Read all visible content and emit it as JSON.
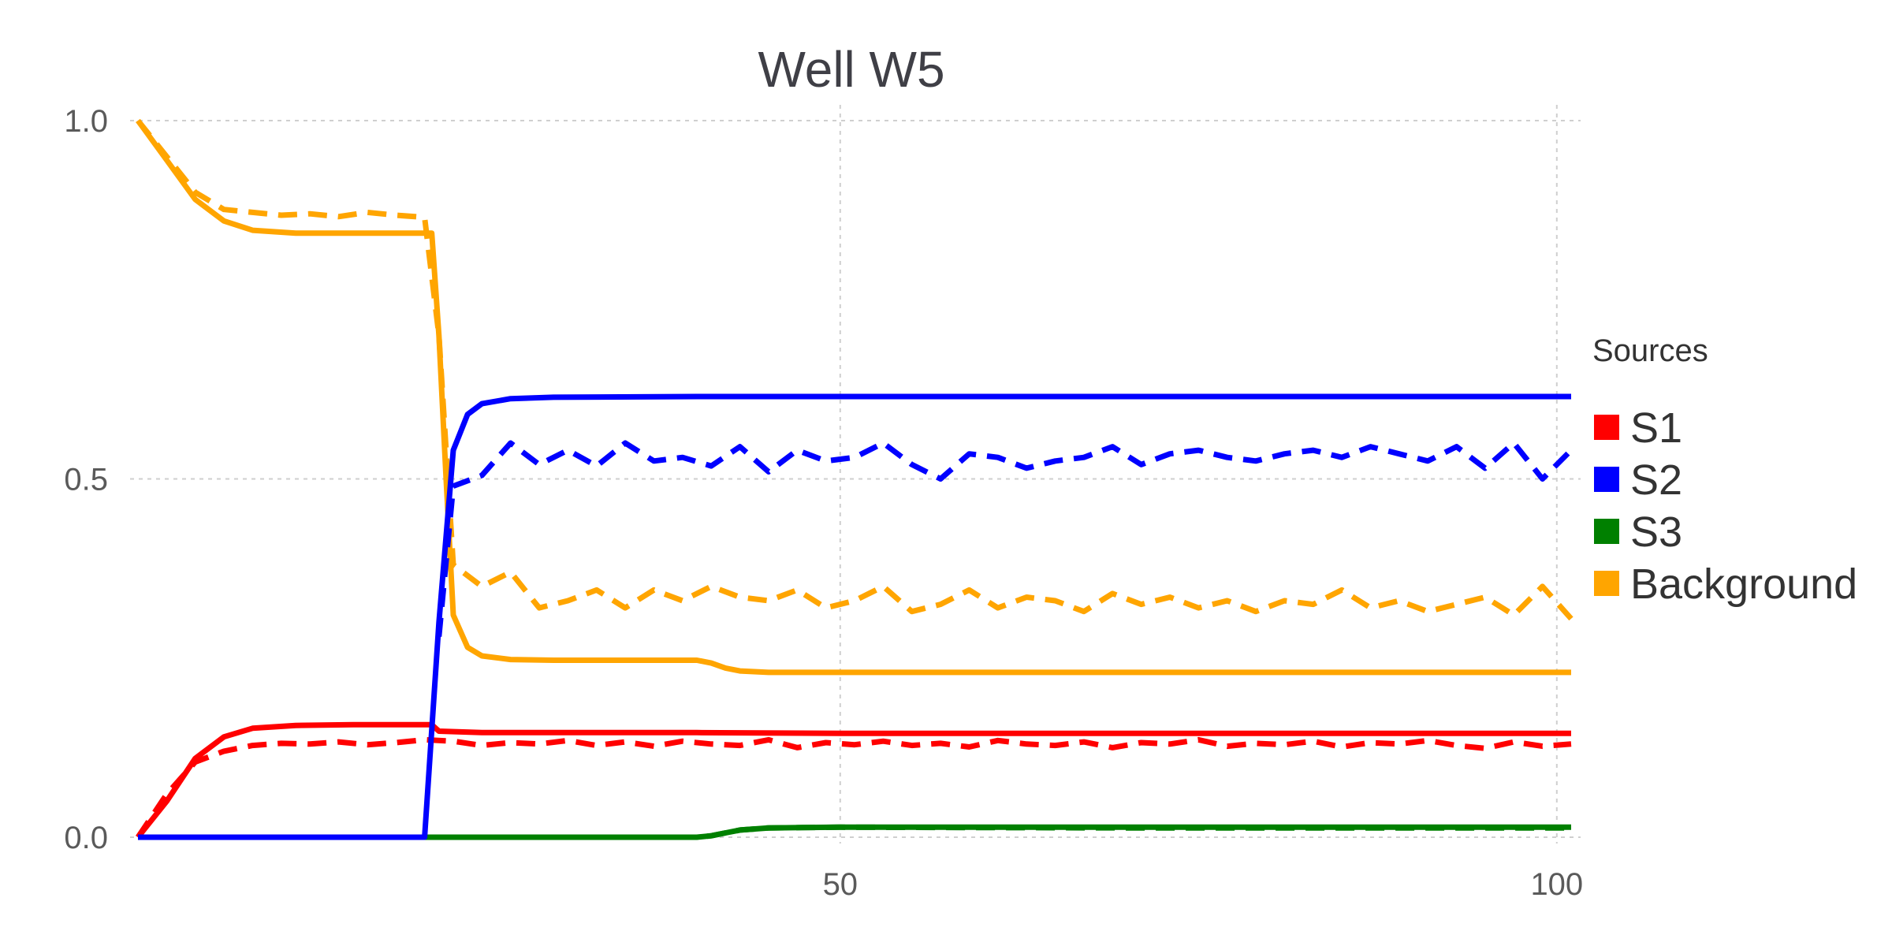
{
  "chart_data": {
    "type": "line",
    "title": "Well W5",
    "xlabel": "",
    "ylabel": "",
    "xlim": [
      1,
      101
    ],
    "ylim": [
      0,
      1
    ],
    "xticks": [
      50,
      100
    ],
    "xtick_labels": [
      "50",
      "100"
    ],
    "yticks": [
      0,
      0.5,
      1
    ],
    "ytick_labels": [
      "0.0",
      "0.5",
      "1.0"
    ],
    "grid": true,
    "legend": {
      "title": "Sources",
      "position": "right"
    },
    "legend_entries": [
      {
        "label": "S1",
        "color": "#ff0000"
      },
      {
        "label": "S2",
        "color": "#0000ff"
      },
      {
        "label": "S3",
        "color": "#008000"
      },
      {
        "label": "Background",
        "color": "#ffa500"
      }
    ],
    "series_styles": {
      "solid": "solid",
      "dashed": "dashed"
    },
    "series": [
      {
        "source": "S1",
        "style": "solid",
        "color": "#ff0000",
        "x": [
          1,
          3,
          5,
          7,
          9,
          12,
          16,
          21,
          21.5,
          22,
          25,
          30,
          40,
          50,
          60,
          80,
          101
        ],
        "y": [
          0,
          0.05,
          0.11,
          0.14,
          0.152,
          0.156,
          0.157,
          0.157,
          0.157,
          0.148,
          0.146,
          0.146,
          0.146,
          0.145,
          0.145,
          0.145,
          0.145
        ]
      },
      {
        "source": "S1",
        "style": "dashed",
        "color": "#ff0000",
        "x": [
          1,
          3,
          5,
          7,
          9,
          11,
          13,
          15,
          17,
          19,
          21,
          23,
          25,
          27,
          29,
          31,
          33,
          35,
          37,
          39,
          41,
          43,
          45,
          47,
          49,
          51,
          53,
          55,
          57,
          59,
          61,
          63,
          65,
          67,
          69,
          71,
          73,
          75,
          77,
          79,
          81,
          83,
          85,
          87,
          89,
          91,
          93,
          95,
          97,
          99,
          101
        ],
        "y": [
          0,
          0.06,
          0.105,
          0.12,
          0.128,
          0.131,
          0.13,
          0.133,
          0.129,
          0.132,
          0.136,
          0.134,
          0.128,
          0.132,
          0.13,
          0.135,
          0.128,
          0.133,
          0.127,
          0.134,
          0.13,
          0.128,
          0.136,
          0.125,
          0.132,
          0.129,
          0.134,
          0.128,
          0.131,
          0.126,
          0.135,
          0.13,
          0.128,
          0.133,
          0.125,
          0.132,
          0.13,
          0.136,
          0.127,
          0.131,
          0.129,
          0.134,
          0.126,
          0.132,
          0.13,
          0.135,
          0.128,
          0.124,
          0.133,
          0.127,
          0.13
        ]
      },
      {
        "source": "S2",
        "style": "solid",
        "color": "#0000ff",
        "x": [
          1,
          21,
          22,
          23,
          24,
          25,
          27,
          30,
          40,
          60,
          80,
          101
        ],
        "y": [
          0,
          0,
          0.3,
          0.54,
          0.59,
          0.605,
          0.612,
          0.614,
          0.615,
          0.615,
          0.615,
          0.615
        ]
      },
      {
        "source": "S2",
        "style": "dashed",
        "color": "#0000ff",
        "x": [
          22,
          23,
          25,
          27,
          29,
          31,
          33,
          35,
          37,
          39,
          41,
          43,
          45,
          47,
          49,
          51,
          53,
          55,
          57,
          59,
          61,
          63,
          65,
          67,
          69,
          71,
          73,
          75,
          77,
          79,
          81,
          83,
          85,
          87,
          89,
          91,
          93,
          95,
          97,
          99,
          101
        ],
        "y": [
          0.28,
          0.49,
          0.505,
          0.55,
          0.52,
          0.54,
          0.518,
          0.55,
          0.525,
          0.53,
          0.518,
          0.545,
          0.51,
          0.54,
          0.525,
          0.53,
          0.55,
          0.52,
          0.5,
          0.535,
          0.53,
          0.515,
          0.525,
          0.53,
          0.545,
          0.52,
          0.535,
          0.54,
          0.53,
          0.525,
          0.535,
          0.54,
          0.53,
          0.545,
          0.535,
          0.525,
          0.545,
          0.515,
          0.55,
          0.5,
          0.54
        ]
      },
      {
        "source": "S3",
        "style": "solid",
        "color": "#008000",
        "x": [
          1,
          21,
          30,
          40,
          41,
          42,
          43,
          45,
          50,
          70,
          101
        ],
        "y": [
          0,
          0,
          0,
          0,
          0.002,
          0.006,
          0.01,
          0.013,
          0.014,
          0.014,
          0.014
        ]
      },
      {
        "source": "S3",
        "style": "dashed",
        "color": "#008000",
        "x": [
          1,
          21,
          30,
          40,
          41,
          42,
          43,
          45,
          50,
          70,
          101
        ],
        "y": [
          0,
          0,
          0,
          0,
          0.002,
          0.006,
          0.01,
          0.013,
          0.014,
          0.013,
          0.013
        ]
      },
      {
        "source": "Background",
        "style": "solid",
        "color": "#ffa500",
        "x": [
          1,
          3,
          5,
          7,
          9,
          12,
          16,
          21,
          21.5,
          22,
          22.5,
          23,
          24,
          25,
          27,
          30,
          35,
          40,
          41,
          42,
          43,
          45,
          50,
          60,
          80,
          101
        ],
        "y": [
          1,
          0.945,
          0.89,
          0.86,
          0.847,
          0.843,
          0.843,
          0.843,
          0.843,
          0.7,
          0.5,
          0.31,
          0.265,
          0.253,
          0.248,
          0.247,
          0.247,
          0.247,
          0.243,
          0.236,
          0.232,
          0.23,
          0.23,
          0.23,
          0.23,
          0.23
        ]
      },
      {
        "source": "Background",
        "style": "dashed",
        "color": "#ffa500",
        "x": [
          1,
          3,
          5,
          7,
          9,
          11,
          13,
          15,
          17,
          19,
          21,
          22,
          23,
          25,
          27,
          29,
          31,
          33,
          35,
          37,
          39,
          41,
          43,
          45,
          47,
          49,
          51,
          53,
          55,
          57,
          59,
          61,
          63,
          65,
          67,
          69,
          71,
          73,
          75,
          77,
          79,
          81,
          83,
          85,
          87,
          89,
          91,
          93,
          95,
          97,
          99,
          101
        ],
        "y": [
          1,
          0.95,
          0.9,
          0.876,
          0.872,
          0.868,
          0.87,
          0.866,
          0.872,
          0.868,
          0.865,
          0.7,
          0.38,
          0.35,
          0.37,
          0.32,
          0.33,
          0.345,
          0.32,
          0.345,
          0.33,
          0.35,
          0.335,
          0.33,
          0.345,
          0.32,
          0.33,
          0.35,
          0.315,
          0.325,
          0.345,
          0.32,
          0.335,
          0.33,
          0.315,
          0.34,
          0.325,
          0.335,
          0.32,
          0.33,
          0.315,
          0.33,
          0.325,
          0.345,
          0.32,
          0.33,
          0.315,
          0.325,
          0.335,
          0.31,
          0.35,
          0.305
        ]
      }
    ]
  }
}
